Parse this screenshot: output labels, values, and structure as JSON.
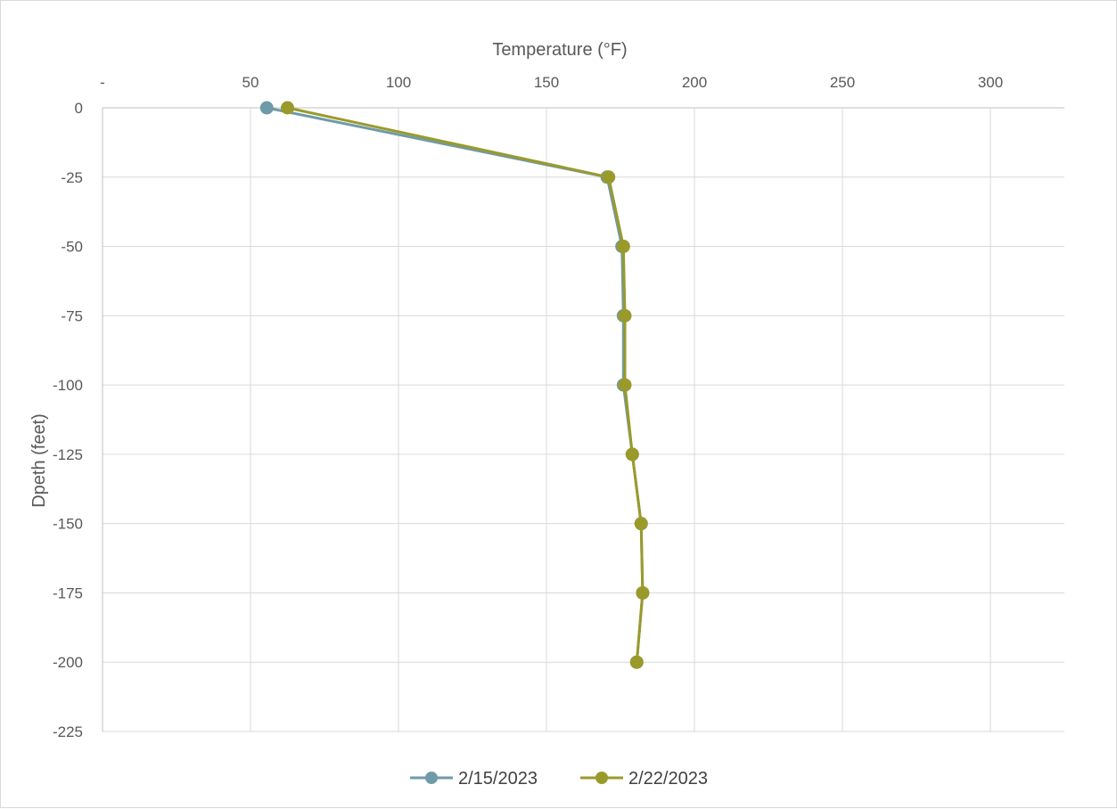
{
  "chart_data": {
    "type": "scatter",
    "title": "",
    "xlabel": "Temperature (°F)",
    "ylabel": "Dpeth (feet)",
    "xlim": [
      0,
      325
    ],
    "ylim": [
      -225,
      0
    ],
    "x_axis_position": "top",
    "x_ticks": [
      0,
      50,
      100,
      150,
      200,
      250,
      300
    ],
    "x_tick_labels": [
      "-",
      "50",
      "100",
      "150",
      "200",
      "250",
      "300"
    ],
    "y_ticks": [
      0,
      -25,
      -50,
      -75,
      -100,
      -125,
      -150,
      -175,
      -200,
      -225
    ],
    "y_tick_labels": [
      "0",
      "-25",
      "-50",
      "-75",
      "-100",
      "-125",
      "-150",
      "-175",
      "-200",
      "-225"
    ],
    "grid": true,
    "legend": "bottom",
    "series": [
      {
        "name": "2/15/2023",
        "color": "#6f9aa8",
        "marker": "circle",
        "points": [
          {
            "x": 55.5,
            "y": 0
          },
          {
            "x": 170.5,
            "y": -25
          },
          {
            "x": 175.5,
            "y": -50
          },
          {
            "x": 176,
            "y": -75
          },
          {
            "x": 176,
            "y": -100
          },
          {
            "x": 179,
            "y": -125
          },
          {
            "x": 182,
            "y": -150
          },
          {
            "x": 182.5,
            "y": -175
          },
          {
            "x": 180.5,
            "y": -200
          }
        ]
      },
      {
        "name": "2/22/2023",
        "color": "#9a9a2b",
        "marker": "circle",
        "points": [
          {
            "x": 62.5,
            "y": 0
          },
          {
            "x": 171,
            "y": -25
          },
          {
            "x": 176,
            "y": -50
          },
          {
            "x": 176.5,
            "y": -75
          },
          {
            "x": 176.5,
            "y": -100
          },
          {
            "x": 179,
            "y": -125
          },
          {
            "x": 182,
            "y": -150
          },
          {
            "x": 182.5,
            "y": -175
          },
          {
            "x": 180.5,
            "y": -200
          }
        ]
      }
    ]
  }
}
